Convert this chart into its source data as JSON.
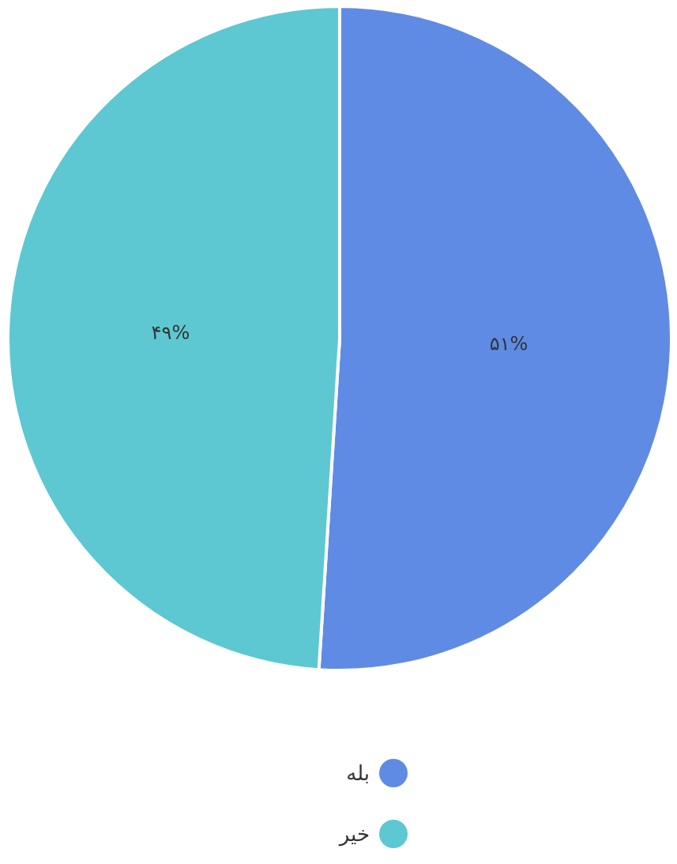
{
  "chart_data": {
    "type": "pie",
    "categories": [
      "بله",
      "خیر"
    ],
    "values": [
      51,
      49
    ],
    "colors": [
      "#5f8be4",
      "#5dc8d1"
    ],
    "value_labels": [
      "۵۱%",
      "۴۹%"
    ],
    "legend": "bottom"
  }
}
